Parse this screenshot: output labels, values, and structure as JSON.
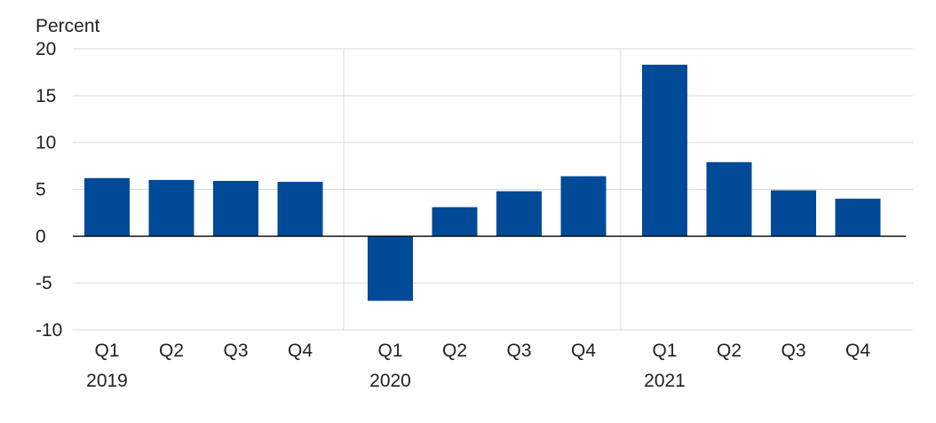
{
  "chart_data": {
    "type": "bar",
    "title": "",
    "xlabel": "",
    "ylabel": "Percent",
    "ylim": [
      -10,
      20
    ],
    "yticks": [
      20,
      15,
      10,
      5,
      0,
      -5,
      -10
    ],
    "grid": true,
    "legend": "none",
    "bar_color": "#004a98",
    "groups": [
      {
        "year": "2019",
        "quarters": [
          "Q1",
          "Q2",
          "Q3",
          "Q4"
        ],
        "values": [
          6.2,
          6.0,
          5.9,
          5.8
        ]
      },
      {
        "year": "2020",
        "quarters": [
          "Q1",
          "Q2",
          "Q3",
          "Q4"
        ],
        "values": [
          -6.9,
          3.1,
          4.8,
          6.4
        ]
      },
      {
        "year": "2021",
        "quarters": [
          "Q1",
          "Q2",
          "Q3",
          "Q4"
        ],
        "values": [
          18.3,
          7.9,
          4.9,
          4.0
        ]
      }
    ]
  }
}
